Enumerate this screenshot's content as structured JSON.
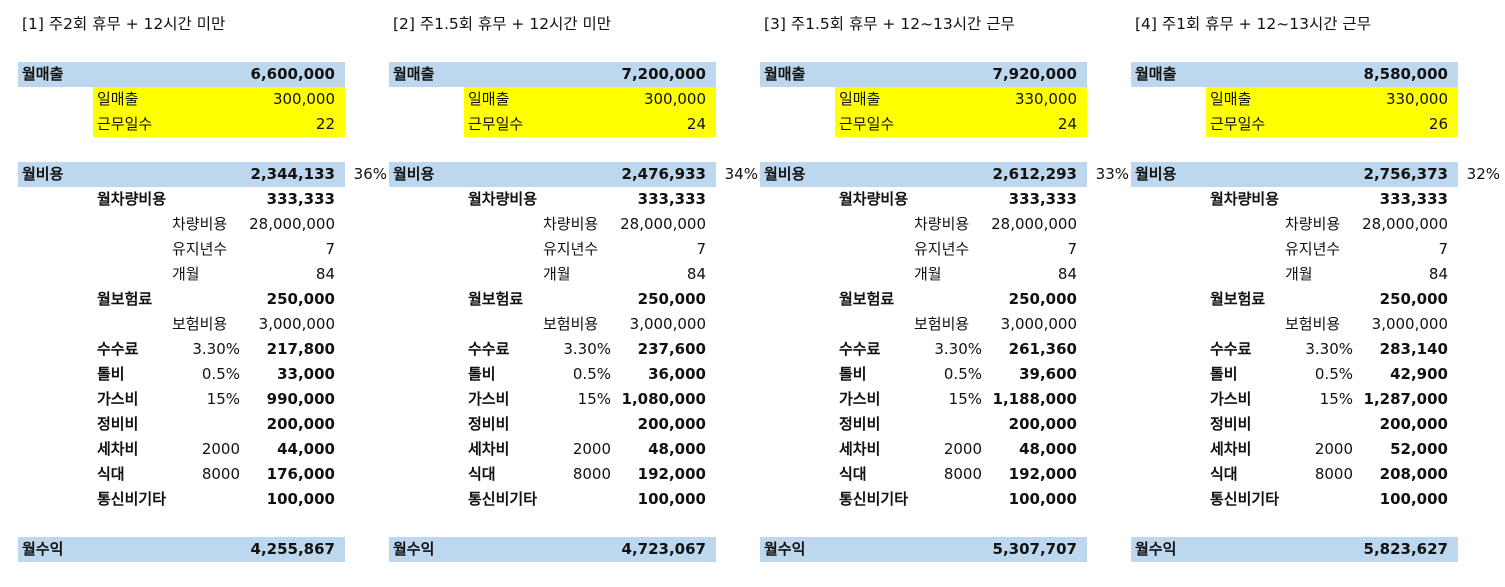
{
  "labels": {
    "monthly_sales": "월매출",
    "daily_sales": "일매출",
    "work_days": "근무일수",
    "monthly_cost": "월비용",
    "vehicle_cost_monthly": "월차량비용",
    "vehicle_cost": "차량비용",
    "years_kept": "유지년수",
    "months": "개월",
    "insurance_monthly": "월보험료",
    "insurance_cost": "보험비용",
    "commission": "수수료",
    "toll": "톨비",
    "gas": "가스비",
    "maintenance": "정비비",
    "car_wash": "세차비",
    "meals": "식대",
    "telecom_etc": "통신비기타",
    "monthly_profit": "월수익"
  },
  "scenarios": [
    {
      "title": "[1] 주2회 휴무 + 12시간 미만",
      "monthly_sales": "6,600,000",
      "daily_sales": "300,000",
      "work_days": "22",
      "monthly_cost": "2,344,133",
      "cost_ratio": "36%",
      "vehicle_cost_monthly": "333,333",
      "vehicle_cost": "28,000,000",
      "years_kept": "7",
      "months": "84",
      "insurance_monthly": "250,000",
      "insurance_cost": "3,000,000",
      "commission_rate": "3.30%",
      "commission": "217,800",
      "toll_rate": "0.5%",
      "toll": "33,000",
      "gas_rate": "15%",
      "gas": "990,000",
      "maintenance": "200,000",
      "car_wash_unit": "2000",
      "car_wash": "44,000",
      "meals_unit": "8000",
      "meals": "176,000",
      "telecom_etc": "100,000",
      "monthly_profit": "4,255,867"
    },
    {
      "title": "[2] 주1.5회 휴무 + 12시간 미만",
      "monthly_sales": "7,200,000",
      "daily_sales": "300,000",
      "work_days": "24",
      "monthly_cost": "2,476,933",
      "cost_ratio": "34%",
      "vehicle_cost_monthly": "333,333",
      "vehicle_cost": "28,000,000",
      "years_kept": "7",
      "months": "84",
      "insurance_monthly": "250,000",
      "insurance_cost": "3,000,000",
      "commission_rate": "3.30%",
      "commission": "237,600",
      "toll_rate": "0.5%",
      "toll": "36,000",
      "gas_rate": "15%",
      "gas": "1,080,000",
      "maintenance": "200,000",
      "car_wash_unit": "2000",
      "car_wash": "48,000",
      "meals_unit": "8000",
      "meals": "192,000",
      "telecom_etc": "100,000",
      "monthly_profit": "4,723,067"
    },
    {
      "title": "[3] 주1.5회 휴무 + 12~13시간 근무",
      "monthly_sales": "7,920,000",
      "daily_sales": "330,000",
      "work_days": "24",
      "monthly_cost": "2,612,293",
      "cost_ratio": "33%",
      "vehicle_cost_monthly": "333,333",
      "vehicle_cost": "28,000,000",
      "years_kept": "7",
      "months": "84",
      "insurance_monthly": "250,000",
      "insurance_cost": "3,000,000",
      "commission_rate": "3.30%",
      "commission": "261,360",
      "toll_rate": "0.5%",
      "toll": "39,600",
      "gas_rate": "15%",
      "gas": "1,188,000",
      "maintenance": "200,000",
      "car_wash_unit": "2000",
      "car_wash": "48,000",
      "meals_unit": "8000",
      "meals": "192,000",
      "telecom_etc": "100,000",
      "monthly_profit": "5,307,707"
    },
    {
      "title": "[4] 주1회 휴무 + 12~13시간 근무",
      "monthly_sales": "8,580,000",
      "daily_sales": "330,000",
      "work_days": "26",
      "monthly_cost": "2,756,373",
      "cost_ratio": "32%",
      "vehicle_cost_monthly": "333,333",
      "vehicle_cost": "28,000,000",
      "years_kept": "7",
      "months": "84",
      "insurance_monthly": "250,000",
      "insurance_cost": "3,000,000",
      "commission_rate": "3.30%",
      "commission": "283,140",
      "toll_rate": "0.5%",
      "toll": "42,900",
      "gas_rate": "15%",
      "gas": "1,287,000",
      "maintenance": "200,000",
      "car_wash_unit": "2000",
      "car_wash": "52,000",
      "meals_unit": "8000",
      "meals": "208,000",
      "telecom_etc": "100,000",
      "monthly_profit": "5,823,627"
    }
  ]
}
